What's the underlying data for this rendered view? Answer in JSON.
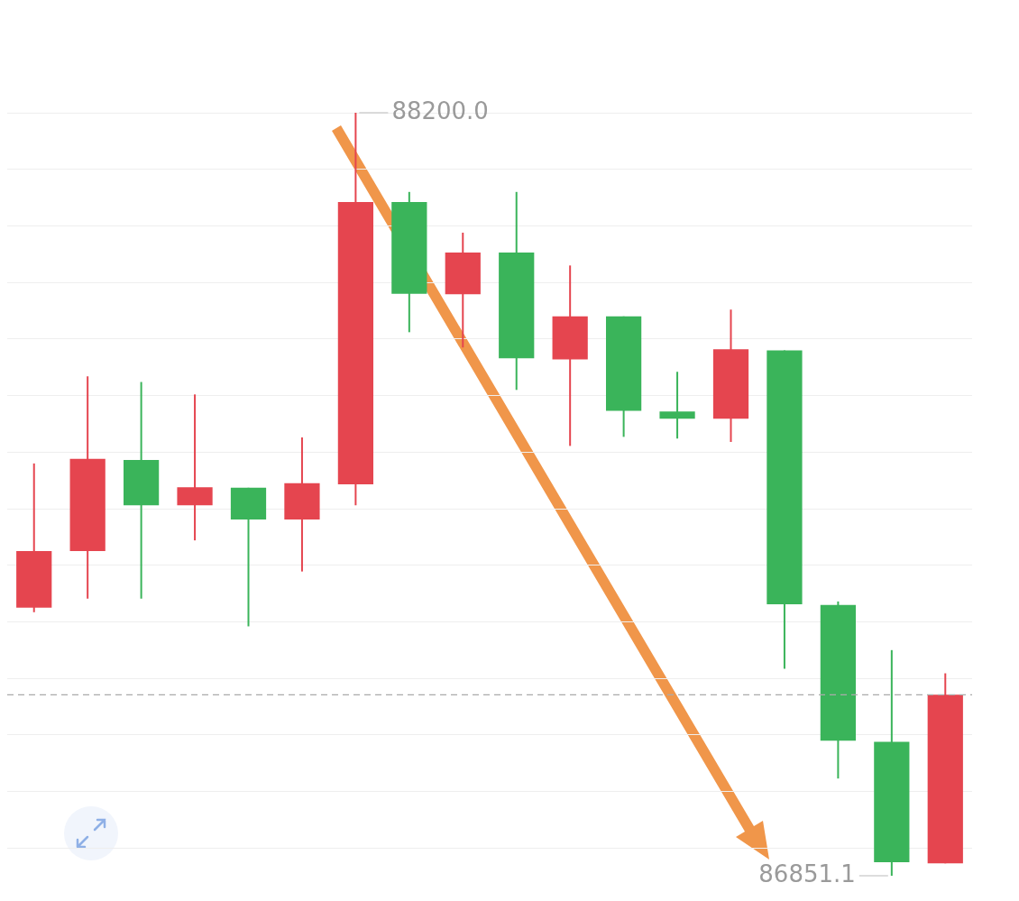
{
  "chart_data": {
    "type": "candlestick",
    "categories": [
      null,
      null,
      null,
      null,
      null,
      null,
      null,
      null,
      null,
      null,
      null,
      null,
      null,
      null,
      null,
      null,
      null,
      null
    ],
    "ohlc": [
      [
        87325,
        87580,
        87317,
        87425
      ],
      [
        87425,
        87734,
        87341,
        87588
      ],
      [
        87586,
        87724,
        87341,
        87506
      ],
      [
        87506,
        87702,
        87444,
        87538
      ],
      [
        87537,
        87537,
        87292,
        87481
      ],
      [
        87481,
        87626,
        87389,
        87545
      ],
      [
        87543,
        88200,
        87506,
        88042
      ],
      [
        88042,
        88060,
        87812,
        87880
      ],
      [
        87879,
        87988,
        87785,
        87953
      ],
      [
        87953,
        88060,
        87710,
        87766
      ],
      [
        87764,
        87930,
        87611,
        87840
      ],
      [
        87840,
        87840,
        87627,
        87673
      ],
      [
        87672,
        87742,
        87624,
        87659
      ],
      [
        87659,
        87852,
        87618,
        87782
      ],
      [
        87780,
        87780,
        87217,
        87331
      ],
      [
        87330,
        87336,
        87023,
        87090
      ],
      [
        87088,
        87250,
        86851.1,
        86875
      ],
      [
        86873,
        87209,
        86873,
        87171
      ]
    ],
    "colors": [
      "#e5454f",
      "#e5454f",
      "#3ab45a",
      "#e5454f",
      "#3ab45a",
      "#e5454f",
      "#e5454f",
      "#3ab45a",
      "#e5454f",
      "#3ab45a",
      "#e5454f",
      "#3ab45a",
      "#3ab45a",
      "#e5454f",
      "#3ab45a",
      "#3ab45a",
      "#3ab45a",
      "#e5454f"
    ],
    "yticks": [
      {
        "value": 86900,
        "label": null
      },
      {
        "value": 87000,
        "label": null
      },
      {
        "value": 87100,
        "label": null
      },
      {
        "value": 87200,
        "label": null
      },
      {
        "value": 87300,
        "label": null
      },
      {
        "value": 87400,
        "label": null
      },
      {
        "value": 87500,
        "label": null
      },
      {
        "value": 87600,
        "label": null
      },
      {
        "value": 87700,
        "label": null
      },
      {
        "value": 87800,
        "label": null
      },
      {
        "value": 87900,
        "label": null
      },
      {
        "value": 88000,
        "label": null
      },
      {
        "value": 88100,
        "label": null
      },
      {
        "value": 88200,
        "label": null
      }
    ],
    "tick_labels": false,
    "grid": "y",
    "legend": false,
    "ref_lines": [
      {
        "axis": "y",
        "value": 87171,
        "color": "#aaaaaa",
        "line_style": "dashed"
      }
    ],
    "annotations": [
      "88200.0",
      "86851.1"
    ]
  }
}
